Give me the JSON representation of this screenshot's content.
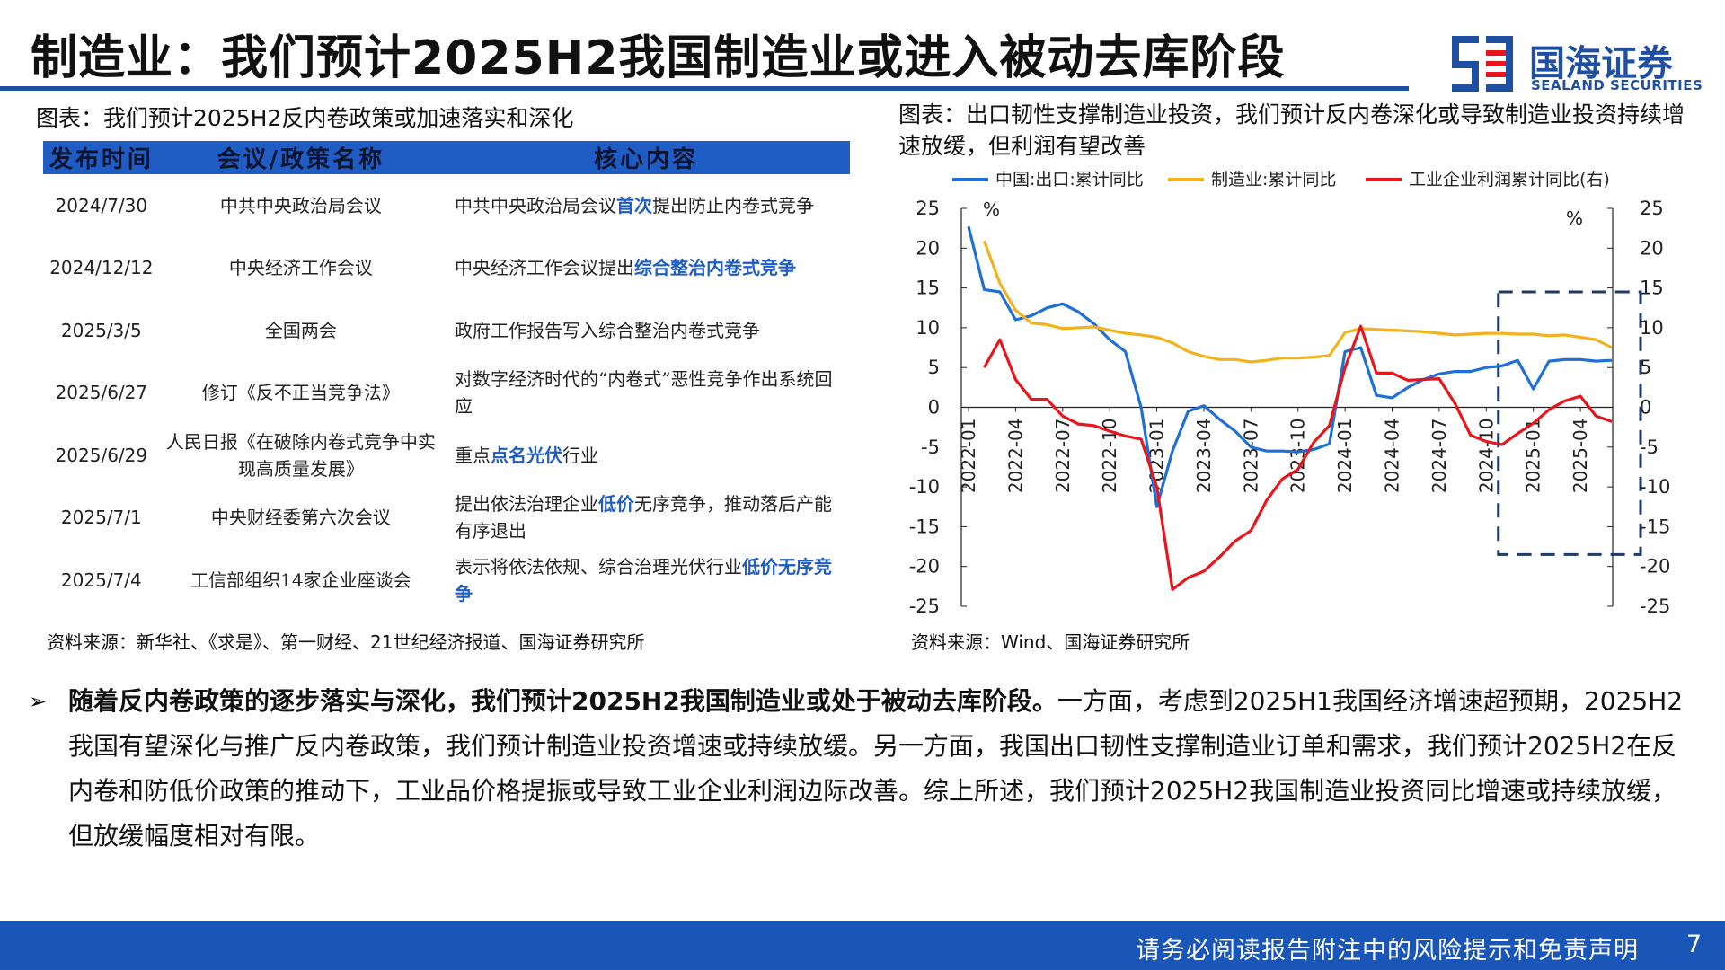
{
  "header": {
    "title": "制造业：我们预计2025H2我国制造业或进入被动去库阶段",
    "logo_cn": "国海证券",
    "logo_en": "SEALAND SECURITIES"
  },
  "left_panel": {
    "caption": "图表：我们预计2025H2反内卷政策或加速落实和深化",
    "headers": [
      "发布时间",
      "会议/政策名称",
      "核心内容"
    ],
    "rows": [
      {
        "date": "2024/7/30",
        "name": "中共中央政治局会议",
        "core_pre": "中共中央政治局会议",
        "core_hl": "首次",
        "core_post": "提出防止内卷式竞争"
      },
      {
        "date": "2024/12/12",
        "name": "中央经济工作会议",
        "core_pre": "中央经济工作会议提出",
        "core_hl": "综合整治内卷式竞争",
        "core_post": ""
      },
      {
        "date": "2025/3/5",
        "name": "全国两会",
        "core_pre": "政府工作报告写入综合整治内卷式竞争",
        "core_hl": "",
        "core_post": ""
      },
      {
        "date": "2025/6/27",
        "name": "修订《反不正当竞争法》",
        "core_pre": "对数字经济时代的“内卷式”恶性竞争作出系统回应",
        "core_hl": "",
        "core_post": ""
      },
      {
        "date": "2025/6/29",
        "name": "人民日报《在破除内卷式竞争中实现高质量发展》",
        "core_pre": "重点",
        "core_hl": "点名光伏",
        "core_post": "行业"
      },
      {
        "date": "2025/7/1",
        "name": "中央财经委第六次会议",
        "core_pre": "提出依法治理企业",
        "core_hl": "低价",
        "core_post": "无序竞争，推动落后产能有序退出"
      },
      {
        "date": "2025/7/4",
        "name": "工信部组织14家企业座谈会",
        "core_pre": "表示将依法依规、综合治理光伏行业",
        "core_hl": "低价无序竞争",
        "core_post": ""
      }
    ],
    "source": "资料来源：新华社、《求是》、第一财经、21世纪经济报道、国海证券研究所"
  },
  "right_panel": {
    "caption": "图表：出口韧性支撑制造业投资，我们预计反内卷深化或导致制造业投资持续增速放缓，但利润有望改善",
    "source": "资料来源：Wind、国海证券研究所"
  },
  "chart_data": {
    "type": "line",
    "unit_left": "%",
    "unit_right": "%",
    "ylim_left": [
      -25,
      25
    ],
    "ylim_right": [
      -25,
      25
    ],
    "yticks_left": [
      "25",
      "20",
      "15",
      "10",
      "5",
      "0",
      "-5",
      "-10",
      "-15",
      "-20",
      "-25"
    ],
    "yticks_right": [
      "25",
      "20",
      "15",
      "10",
      "5",
      "0",
      "-5",
      "-10",
      "-15",
      "-20",
      "-25"
    ],
    "x_ticks": [
      "2022-01",
      "2022-04",
      "2022-07",
      "2022-10",
      "2023-01",
      "2023-04",
      "2023-07",
      "2023-10",
      "2024-01",
      "2024-04",
      "2024-07",
      "2024-10",
      "2025-01",
      "2025-04"
    ],
    "highlight_box": {
      "x_from": "2024-11",
      "x_to": "2025-06",
      "y_from": -18.5,
      "y_to": 14.5
    },
    "series": [
      {
        "name": "中国:出口:累计同比",
        "color": "#1f6fd6",
        "axis": "left",
        "x": [
          "2022-01",
          "2022-02",
          "2022-03",
          "2022-04",
          "2022-05",
          "2022-06",
          "2022-07",
          "2022-08",
          "2022-09",
          "2022-10",
          "2022-11",
          "2022-12",
          "2023-01",
          "2023-02",
          "2023-03",
          "2023-04",
          "2023-05",
          "2023-06",
          "2023-07",
          "2023-08",
          "2023-09",
          "2023-10",
          "2023-11",
          "2023-12",
          "2024-01",
          "2024-02",
          "2024-03",
          "2024-04",
          "2024-05",
          "2024-06",
          "2024-07",
          "2024-08",
          "2024-09",
          "2024-10",
          "2024-11",
          "2024-12",
          "2025-01",
          "2025-02",
          "2025-03",
          "2025-04",
          "2025-05",
          "2025-06"
        ],
        "values": [
          22.7,
          14.8,
          14.5,
          11.0,
          11.5,
          12.5,
          13.0,
          12.0,
          10.5,
          8.5,
          7.0,
          0.0,
          -12.5,
          -5.5,
          -0.5,
          0.2,
          -1.5,
          -3.0,
          -5.0,
          -5.5,
          -5.5,
          -5.6,
          -5.3,
          -4.6,
          7.0,
          7.5,
          1.5,
          1.2,
          2.5,
          3.5,
          4.2,
          4.5,
          4.5,
          5.0,
          5.2,
          5.9,
          2.3,
          5.8,
          6.0,
          6.0,
          5.8,
          5.9
        ]
      },
      {
        "name": "制造业:累计同比",
        "color": "#f2b21b",
        "axis": "left",
        "x": [
          "2022-02",
          "2022-03",
          "2022-04",
          "2022-05",
          "2022-06",
          "2022-07",
          "2022-08",
          "2022-09",
          "2022-10",
          "2022-11",
          "2022-12",
          "2023-01",
          "2023-02",
          "2023-03",
          "2023-04",
          "2023-05",
          "2023-06",
          "2023-07",
          "2023-08",
          "2023-09",
          "2023-10",
          "2023-11",
          "2023-12",
          "2024-01",
          "2024-02",
          "2024-03",
          "2024-04",
          "2024-05",
          "2024-06",
          "2024-07",
          "2024-08",
          "2024-09",
          "2024-10",
          "2024-11",
          "2024-12",
          "2025-01",
          "2025-02",
          "2025-03",
          "2025-04",
          "2025-05",
          "2025-06"
        ],
        "values": [
          20.9,
          15.6,
          12.2,
          10.6,
          10.4,
          9.9,
          10.0,
          10.1,
          9.7,
          9.3,
          9.1,
          8.8,
          8.1,
          7.0,
          6.4,
          6.0,
          6.0,
          5.7,
          5.9,
          6.2,
          6.2,
          6.3,
          6.5,
          9.4,
          9.9,
          9.8,
          9.7,
          9.6,
          9.5,
          9.3,
          9.1,
          9.2,
          9.3,
          9.3,
          9.2,
          9.2,
          9.0,
          9.1,
          8.8,
          8.5,
          7.5
        ]
      },
      {
        "name": "工业企业利润累计同比(右)",
        "color": "#e8161b",
        "axis": "right",
        "x": [
          "2022-02",
          "2022-03",
          "2022-04",
          "2022-05",
          "2022-06",
          "2022-07",
          "2022-08",
          "2022-09",
          "2022-10",
          "2022-11",
          "2022-12",
          "2023-01",
          "2023-02",
          "2023-03",
          "2023-04",
          "2023-05",
          "2023-06",
          "2023-07",
          "2023-08",
          "2023-09",
          "2023-10",
          "2023-11",
          "2023-12",
          "2024-01",
          "2024-02",
          "2024-03",
          "2024-04",
          "2024-05",
          "2024-06",
          "2024-07",
          "2024-08",
          "2024-09",
          "2024-10",
          "2024-11",
          "2024-12",
          "2025-01",
          "2025-02",
          "2025-03",
          "2025-04",
          "2025-05",
          "2025-06"
        ],
        "values": [
          5.0,
          8.5,
          3.5,
          1.0,
          1.0,
          -1.1,
          -2.1,
          -2.3,
          -3.0,
          -3.6,
          -4.0,
          -10.0,
          -22.9,
          -21.4,
          -20.6,
          -18.8,
          -16.8,
          -15.5,
          -11.7,
          -9.0,
          -7.8,
          -4.4,
          -2.3,
          5.0,
          10.2,
          4.3,
          4.3,
          3.4,
          3.5,
          3.6,
          0.5,
          -3.5,
          -4.3,
          -4.7,
          -3.3,
          -2.0,
          -0.3,
          0.8,
          1.4,
          -1.1,
          -1.8
        ]
      }
    ]
  },
  "paragraph": {
    "lead": "随着反内卷政策的逐步落实与深化，我们预计2025H2我国制造业或处于被动去库阶段。",
    "body": "一方面，考虑到2025H1我国经济增速超预期，2025H2我国有望深化与推广反内卷政策，我们预计制造业投资增速或持续放缓。另一方面，我国出口韧性支撑制造业订单和需求，我们预计2025H2在反内卷和防低价政策的推动下，工业品价格提振或导致工业企业利润边际改善。综上所述，我们预计2025H2我国制造业投资同比增速或持续放缓，但放缓幅度相对有限。"
  },
  "footer": {
    "notice": "请务必阅读报告附注中的风险提示和免责声明",
    "page": "7"
  }
}
